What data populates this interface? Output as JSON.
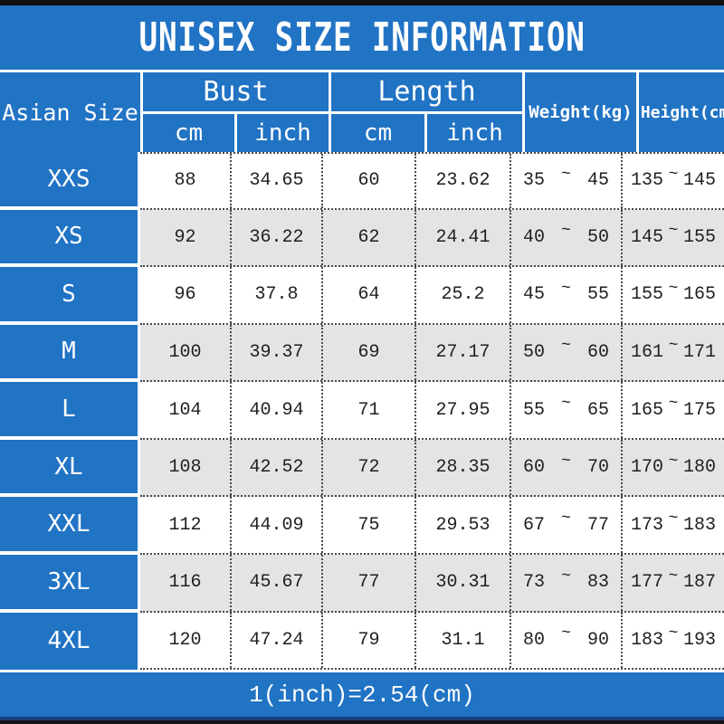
{
  "title": "UNISEX SIZE INFORMATION",
  "header": {
    "size_col": "Asian Size",
    "bust": "Bust",
    "length": "Length",
    "cm": "cm",
    "inch": "inch",
    "weight": "Weight(kg)",
    "height": "Height(cm)"
  },
  "rows": [
    {
      "size": "XXS",
      "bust_cm": "88",
      "bust_inch": "34.65",
      "length_cm": "60",
      "length_inch": "23.62",
      "weight_min": "35",
      "weight_max": "45",
      "height_min": "135",
      "height_max": "145"
    },
    {
      "size": "XS",
      "bust_cm": "92",
      "bust_inch": "36.22",
      "length_cm": "62",
      "length_inch": "24.41",
      "weight_min": "40",
      "weight_max": "50",
      "height_min": "145",
      "height_max": "155"
    },
    {
      "size": "S",
      "bust_cm": "96",
      "bust_inch": "37.8",
      "length_cm": "64",
      "length_inch": "25.2",
      "weight_min": "45",
      "weight_max": "55",
      "height_min": "155",
      "height_max": "165"
    },
    {
      "size": "M",
      "bust_cm": "100",
      "bust_inch": "39.37",
      "length_cm": "69",
      "length_inch": "27.17",
      "weight_min": "50",
      "weight_max": "60",
      "height_min": "161",
      "height_max": "171"
    },
    {
      "size": "L",
      "bust_cm": "104",
      "bust_inch": "40.94",
      "length_cm": "71",
      "length_inch": "27.95",
      "weight_min": "55",
      "weight_max": "65",
      "height_min": "165",
      "height_max": "175"
    },
    {
      "size": "XL",
      "bust_cm": "108",
      "bust_inch": "42.52",
      "length_cm": "72",
      "length_inch": "28.35",
      "weight_min": "60",
      "weight_max": "70",
      "height_min": "170",
      "height_max": "180"
    },
    {
      "size": "XXL",
      "bust_cm": "112",
      "bust_inch": "44.09",
      "length_cm": "75",
      "length_inch": "29.53",
      "weight_min": "67",
      "weight_max": "77",
      "height_min": "173",
      "height_max": "183"
    },
    {
      "size": "3XL",
      "bust_cm": "116",
      "bust_inch": "45.67",
      "length_cm": "77",
      "length_inch": "30.31",
      "weight_min": "73",
      "weight_max": "83",
      "height_min": "177",
      "height_max": "187"
    },
    {
      "size": "4XL",
      "bust_cm": "120",
      "bust_inch": "47.24",
      "length_cm": "79",
      "length_inch": "31.1",
      "weight_min": "80",
      "weight_max": "90",
      "height_min": "183",
      "height_max": "193"
    }
  ],
  "misc": {
    "tilde": "~"
  },
  "footer": {
    "note": "1(inch)=2.54(cm)"
  },
  "colors": {
    "accent_blue": "#2173c4",
    "row_alt_gray": "#e4e4e4"
  },
  "chart_data": {
    "type": "table",
    "title": "UNISEX SIZE INFORMATION",
    "columns": [
      "Asian Size",
      "Bust (cm)",
      "Bust (inch)",
      "Length (cm)",
      "Length (inch)",
      "Weight (kg)",
      "Height (cm)"
    ],
    "rows": [
      [
        "XXS",
        88,
        34.65,
        60,
        23.62,
        "35~45",
        "135~145"
      ],
      [
        "XS",
        92,
        36.22,
        62,
        24.41,
        "40~50",
        "145~155"
      ],
      [
        "S",
        96,
        37.8,
        64,
        25.2,
        "45~55",
        "155~165"
      ],
      [
        "M",
        100,
        39.37,
        69,
        27.17,
        "50~60",
        "161~171"
      ],
      [
        "L",
        104,
        40.94,
        71,
        27.95,
        "55~65",
        "165~175"
      ],
      [
        "XL",
        108,
        42.52,
        72,
        28.35,
        "60~70",
        "170~180"
      ],
      [
        "XXL",
        112,
        44.09,
        75,
        29.53,
        "67~77",
        "173~183"
      ],
      [
        "3XL",
        116,
        45.67,
        77,
        30.31,
        "73~83",
        "177~187"
      ],
      [
        "4XL",
        120,
        47.24,
        79,
        31.1,
        "80~90",
        "183~193"
      ]
    ],
    "note": "1(inch)=2.54(cm)"
  }
}
